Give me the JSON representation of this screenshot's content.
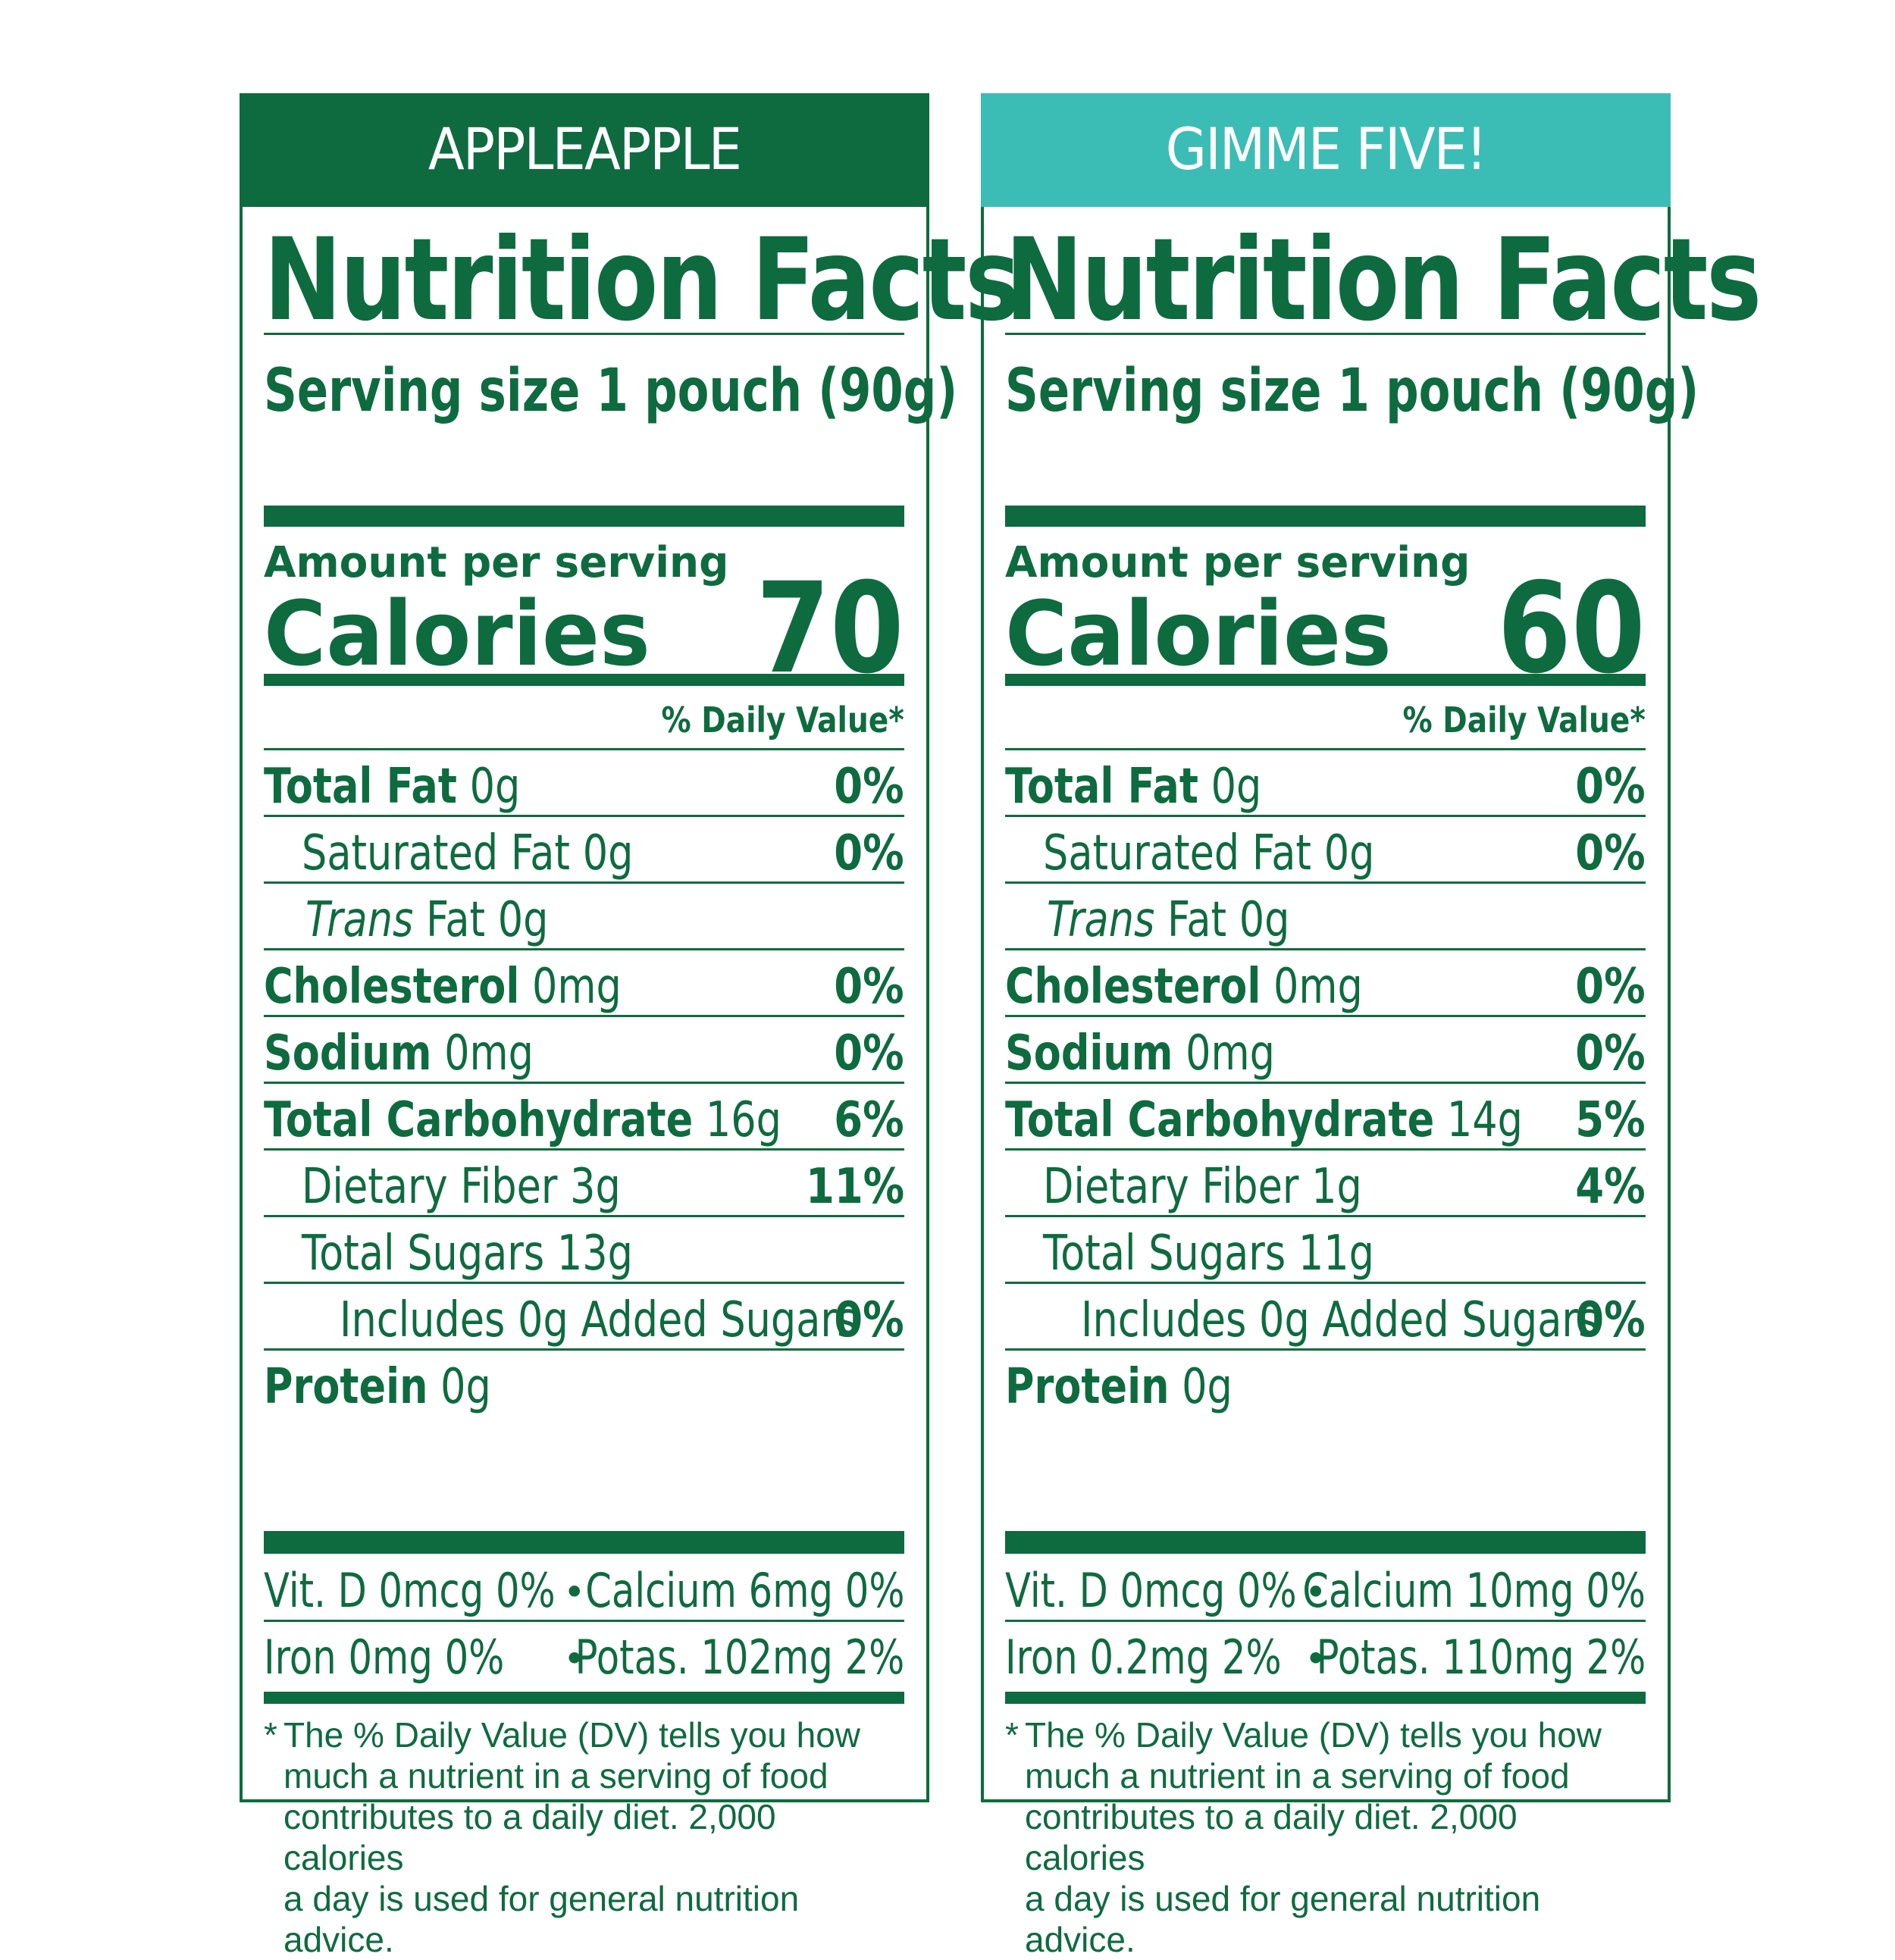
{
  "colors": {
    "text_green": "#0e6b3f",
    "banner_left": "#0e6b3f",
    "banner_right": "#3bbdb6"
  },
  "panels": [
    {
      "name": "APPLEAPPLE",
      "title": "Nutrition Facts",
      "serving": "Serving size 1 pouch (90g)",
      "amount_per_serving": "Amount per serving",
      "calories_label": "Calories",
      "calories": "70",
      "dv_header": "% Daily Value*",
      "rows": {
        "total_fat": {
          "name": "Total Fat",
          "amount": " 0g",
          "pct": "0%"
        },
        "sat_fat": {
          "name": "Saturated Fat 0g",
          "pct": "0%"
        },
        "trans_fat": {
          "name": "Trans",
          "amount": " Fat 0g"
        },
        "cholesterol": {
          "name": "Cholesterol",
          "amount": " 0mg",
          "pct": "0%"
        },
        "sodium": {
          "name": "Sodium",
          "amount": " 0mg",
          "pct": "0%"
        },
        "carb": {
          "name": "Total Carbohydrate",
          "amount": " 16g",
          "pct": "6%"
        },
        "fiber": {
          "name": "Dietary Fiber 3g",
          "pct": "11%"
        },
        "sugars": {
          "name": "Total Sugars 13g"
        },
        "added": {
          "name": "Includes 0g Added Sugars",
          "pct": "0%"
        },
        "protein": {
          "name": "Protein",
          "amount": " 0g"
        }
      },
      "vitamins": [
        {
          "left": "Vit. D 0mcg 0%",
          "right": "Calcium 6mg 0%"
        },
        {
          "left": "Iron 0mg 0%",
          "right": "Potas. 102mg 2%"
        }
      ],
      "bullet": "•",
      "footnote_star": "*",
      "footnote": "The % Daily Value (DV) tells you how\nmuch a nutrient in a serving of food\ncontributes to a daily diet. 2,000 calories\na day is used for general nutrition advice."
    },
    {
      "name": "GIMME FIVE!",
      "title": "Nutrition Facts",
      "serving": "Serving size 1 pouch (90g)",
      "amount_per_serving": "Amount per serving",
      "calories_label": "Calories",
      "calories": "60",
      "dv_header": "% Daily Value*",
      "rows": {
        "total_fat": {
          "name": "Total Fat",
          "amount": " 0g",
          "pct": "0%"
        },
        "sat_fat": {
          "name": "Saturated Fat 0g",
          "pct": "0%"
        },
        "trans_fat": {
          "name": "Trans",
          "amount": " Fat 0g"
        },
        "cholesterol": {
          "name": "Cholesterol",
          "amount": " 0mg",
          "pct": "0%"
        },
        "sodium": {
          "name": "Sodium",
          "amount": " 0mg",
          "pct": "0%"
        },
        "carb": {
          "name": "Total Carbohydrate",
          "amount": " 14g",
          "pct": "5%"
        },
        "fiber": {
          "name": "Dietary Fiber 1g",
          "pct": "4%"
        },
        "sugars": {
          "name": "Total Sugars 11g"
        },
        "added": {
          "name": "Includes 0g Added Sugars",
          "pct": "0%"
        },
        "protein": {
          "name": "Protein",
          "amount": " 0g"
        }
      },
      "vitamins": [
        {
          "left": "Vit. D 0mcg 0%",
          "right": "Calcium 10mg 0%"
        },
        {
          "left": "Iron 0.2mg 2%",
          "right": "Potas. 110mg 2%"
        }
      ],
      "bullet": "•",
      "footnote_star": "*",
      "footnote": "The % Daily Value (DV) tells you how\nmuch a nutrient in a serving of food\ncontributes to a daily diet. 2,000 calories\na day is used for general nutrition advice."
    }
  ]
}
